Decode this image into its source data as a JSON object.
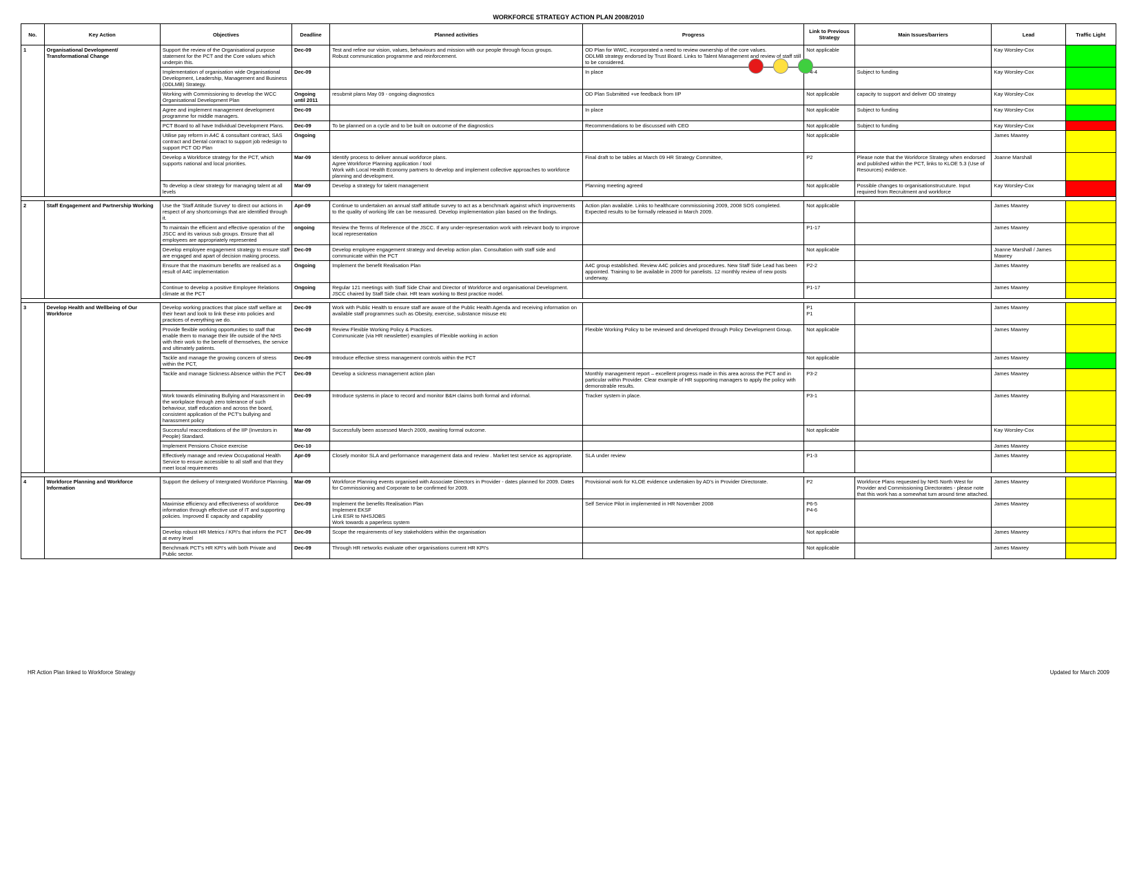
{
  "title": "WORKFORCE STRATEGY ACTION PLAN 2008/2010",
  "footer_left": "HR Action Plan linked to Workforce Strategy",
  "footer_right": "Updated for March 2009",
  "colors": {
    "red": "#ff0000",
    "amber": "#ffff00",
    "green": "#00ff00",
    "dot_red": "#e61919",
    "dot_yellow": "#ffe040",
    "dot_green": "#3fcf3f"
  },
  "columns": [
    "No.",
    "Key Action",
    "Objectives",
    "Deadline",
    "Planned activities",
    "Progress",
    "Link to Previous Strategy",
    "Main Issues/barriers",
    "Lead",
    "Traffic Light"
  ],
  "sections": [
    {
      "no": "1",
      "key_action": "Organisational Development/ Transformational Change",
      "rows": [
        {
          "obj": "Support the review of the Organisational purpose statement for the PCT and the Core values which underpin this.",
          "deadline": "Dec-09",
          "act": "Test and refine our vision, values, behaviours and mission with our people through focus groups.\nRobust communication programme and reinforcement.",
          "prog": "OD Plan for WWC, incorporated a need to review ownership of the core values.\nODLMB strategy endorsed by Trust Board. Links to Talent Management and review of staff still to be considered.",
          "link": "Not applicable",
          "iss": "",
          "lead": "Kay Worsley-Cox",
          "light": "green"
        },
        {
          "obj": "Implementation of organisation wide Organisational Development, Leadership, Management and Business (ODLMB) Strategy.",
          "deadline": "Dec-09",
          "act": "",
          "prog": "In place",
          "link": "P4-4",
          "iss": "Subject to funding",
          "lead": "Kay Worsley-Cox",
          "light": "green"
        },
        {
          "obj": "Working with Commissioning to develop the WCC Organisational Development Plan",
          "deadline": "Ongoing until 2011",
          "act": "resubmit plans May 09 - ongoing diagnostics",
          "prog": "OD Plan Submitted +ve feedback from IIP",
          "link": "Not applicable",
          "iss": "capacity to support and deliver OD strategy",
          "lead": "Kay Worsley-Cox",
          "light": "amber"
        },
        {
          "obj": "Agree and implement management development programme for middle managers.",
          "deadline": "Dec-09",
          "act": "",
          "prog": "In place",
          "link": "Not applicable",
          "iss": "Subject to funding",
          "lead": "Kay Worsley-Cox",
          "light": "green"
        },
        {
          "obj": "PCT Board to all have Individual Development Plans.",
          "deadline": "Dec-09",
          "act": "To be planned on a cycle and to be built on outcome of the diagnostics",
          "prog": "Recommendations to be discussed with CEO",
          "link": "Not applicable",
          "iss": "Subject to funding",
          "lead": "Kay Worsley-Cox",
          "light": "red"
        },
        {
          "obj": "Utilise pay reform in A4C & consultant contract, SAS contract and Dental contract to support job redesign to support PCT OD Plan",
          "deadline": "Ongoing",
          "act": "",
          "prog": "",
          "link": "Not applicable",
          "iss": "",
          "lead": "James Mawrey",
          "light": "amber"
        },
        {
          "obj": "Develop a Workforce strategy for the PCT, which supports national and local priorities.",
          "deadline": "Mar-09",
          "act": "Identify process to deliver annual workforce plans.\nAgree Workforce Planning application / tool\nWork with Local Health Economy partners to develop and implement collective approaches to workforce planning and development.",
          "prog": "Final draft to be tables at March 09 HR Strategy Committee,",
          "link": "P2",
          "iss": "Please note that the Workforce Strategy when endorsed and published within the PCT, links to KLOE 5.3 (Use of Resources) evidence.",
          "lead": "Joanne Marshall",
          "light": "amber"
        },
        {
          "obj": "To develop a clear strategy for managing talent at all levels",
          "deadline": "Mar-09",
          "act": "Develop a strategy for talent management",
          "prog": "Planning meeting agreed",
          "link": "Not applicable",
          "iss": "Possible changes to organisationstrucuture. Input required from Recruitment and workforce",
          "lead": "Kay Worsley-Cox",
          "light": "red"
        }
      ]
    },
    {
      "no": "2",
      "key_action": "Staff Engagement and Partnership Working",
      "rows": [
        {
          "obj": "Use the 'Staff Attitude Survey' to direct our actions in respect of any shortcomings that are identified through it.",
          "deadline": "Apr-09",
          "act": "Continue to undertaken an annual staff attitude survey to act as a benchmark against which improvements to the quality of working life can be measured. Develop implementation plan based on the findings.",
          "prog": "Action plan available. Links to healthcare commissioning 2009, 2008 SOS completed. Expected results to be formally released in March 2009.",
          "link": "Not applicable",
          "iss": "",
          "lead": "James Mawrey",
          "light": "amber"
        },
        {
          "obj": "To maintain the efficient and effective operation of the JSCC and its various sub groups. Ensure that all employees are appropriately represented",
          "deadline": "ongoing",
          "act": "Review the Terms of Reference of the JSCC. If any under-representation work with relevant body to improve local representation",
          "prog": "",
          "link": "P1-17",
          "iss": "",
          "lead": "James Mawrey",
          "light": "amber"
        },
        {
          "obj": "Develop employee engagement strategy to ensure staff are engaged and apart of decision making process.",
          "deadline": "Dec-09",
          "act": "Develop employee engagement strategy and develop action plan. Consultation with staff side and communicate within the PCT",
          "prog": "",
          "link": "Not applicable",
          "iss": "",
          "lead": "Joanne Marshall / James Mawrey",
          "light": "amber"
        },
        {
          "obj": "Ensure that the maximum benefits are realised as a result of A4C implementation",
          "deadline": "Ongoing",
          "act": "Implement the benefit Realisation Plan",
          "prog": "A4C group established. Review A4C policies and procedures. New Staff Side Lead has been appointed. Training to be available in 2009 for panelists. 12 monthly review of new posts underway.",
          "link": "P2-2",
          "iss": "",
          "lead": "James Mawrey",
          "light": "amber"
        },
        {
          "obj": "Continue to develop a positive Employee Relations climate at the PCT",
          "deadline": "Ongoing",
          "act": "Regular 121 meetings with Staff Side Chair and Director of Workforce and organisational Development. JSCC chaired by Staff Side chair. HR team working to Best practice model.",
          "prog": "",
          "link": "P1-17",
          "iss": "",
          "lead": "James Mawrey",
          "light": "amber"
        }
      ]
    },
    {
      "no": "3",
      "key_action": "Develop Health and Wellbeing of Our Workforce",
      "rows": [
        {
          "obj": "Develop working practices that place staff welfare at their heart and look to link these into policies and practices of everything we do.",
          "deadline": "Dec-09",
          "act": "Work with Public Health to ensure staff are aware of the Public Health Agenda and receiving information on available staff programmes such as Obesity, exercise, substance misuse etc",
          "prog": "",
          "link": "P1\nP1",
          "iss": "",
          "lead": "James Mawrey",
          "light": "amber"
        },
        {
          "obj": "Provide flexible working opportunities to staff that enable them to manage their life outside of the NHS with their work to the benefit of themselves, the service and ultimately patients.",
          "deadline": "Dec-09",
          "act": "Review Flexible Working Policy & Practices.\nCommunicate (via HR newsletter) examples of Flexible working in action",
          "prog": "Flexible Working Policy to be reviewed and developed through Policy Development Group.",
          "link": "Not applicable",
          "iss": "",
          "lead": "James Mawrey",
          "light": "amber"
        },
        {
          "obj": "Tackle and manage the growing concern of stress within the PCT,",
          "deadline": "Dec-09",
          "act": "Introduce effective stress management controls within the PCT",
          "prog": "",
          "link": "Not applicable",
          "iss": "",
          "lead": "James Mawrey",
          "light": "green"
        },
        {
          "obj": "Tackle and manage Sickness Absence within the PCT",
          "deadline": "Dec-09",
          "act": "Develop a sickness management action plan",
          "prog": "Monthly management report – excellent progress made in this area across the PCT and in particular within Provider. Clear example of HR supporting managers to apply the policy with demonstrable results.",
          "link": "P3-2",
          "iss": "",
          "lead": "James Mawrey",
          "light": "amber"
        },
        {
          "obj": "Work towards eliminating Bullying and Harassment in the workplace through zero tolerance of such behaviour, staff education and across the board, consistent application of the PCT's bullying and harassment policy",
          "deadline": "Dec-09",
          "act": "Introduce systems in place to record and monitor B&H claims both formal and informal.",
          "prog": "Tracker system in place.",
          "link": "P3-1",
          "iss": "",
          "lead": "James Mawrey",
          "light": "amber"
        },
        {
          "obj": "Successful reaccreditations of the IIP (Investors in People) Standard.",
          "deadline": "Mar-09",
          "act": "Successfully been assessed March 2009, awaiting formal outcome.",
          "prog": "",
          "link": "Not applicable",
          "iss": "",
          "lead": "Kay Worsley-Cox",
          "light": "amber"
        },
        {
          "obj": "Implement Pensions Choice exercise",
          "deadline": "Dec-10",
          "act": "",
          "prog": "",
          "link": "",
          "iss": "",
          "lead": "James Mawrey",
          "light": "amber"
        },
        {
          "obj": "Effectively manage and review Occupational Health Service to ensure accessible to all staff and that they meet local requirements",
          "deadline": "Apr-09",
          "act": "Closely monitor SLA and performance management data and review . Market test service as appropriate.",
          "prog": "SLA under review",
          "link": "P1-3",
          "iss": "",
          "lead": "James Mawrey",
          "light": "amber"
        }
      ]
    },
    {
      "no": "4",
      "key_action": "Workforce Planning and Workforce Information",
      "rows": [
        {
          "obj": "Support the delivery of Intergrated Workforce Planning.",
          "deadline": "Mar-09",
          "act": "Workforce Planning events organised with Associate Directors in Provider - dates planned for 2009. Dates for Commissioning and Corporate to be confirmed for 2009.",
          "prog": "Provisional work for KLOE evidence undertaken by AD's in Provider Directorate.",
          "link": "P2",
          "iss": "Workforce Plans requested by NHS North West for Provider and Commissioning Directorates - please note that this work has a somewhat turn around time attached.",
          "lead": "James Mawrey",
          "light": "amber"
        },
        {
          "obj": "Maximise efficiency and effectiveness of workforce information through effective use of IT and supporting policies. Improved E capacity and capability",
          "deadline": "Dec-09",
          "act": "Implement the benefits Realisation Plan\nImplement EKSF\nLink ESR to NHSJOBS\nWork towards a paperless system",
          "prog": "Self Service Pilot in implemented in HR November 2008",
          "link": "P6-5\nP4-6",
          "iss": "",
          "lead": "James Mawrey",
          "light": "amber"
        },
        {
          "obj": "Develop robust HR Metrics / KPI's that inform the PCT at every level",
          "deadline": "Dec-09",
          "act": "Scope the requirements of key stakeholders within the organisation",
          "prog": "",
          "link": "Not applicable",
          "iss": "",
          "lead": "James Mawrey",
          "light": "amber"
        },
        {
          "obj": "Benchmark PCT's HR KPI's with both Private and Public sector.",
          "deadline": "Dec-09",
          "act": "Through HR networks evaluate other organisations current HR KPI's",
          "prog": "",
          "link": "Not applicable",
          "iss": "",
          "lead": "James Mawrey",
          "light": "amber"
        }
      ]
    }
  ]
}
